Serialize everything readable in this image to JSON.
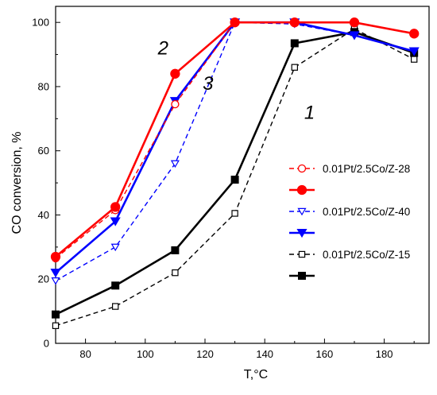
{
  "chart_data": {
    "type": "line",
    "xlabel": "T,°C",
    "ylabel": "CO conversion, %",
    "xlim": [
      70,
      195
    ],
    "ylim": [
      0,
      105
    ],
    "xticks": [
      80,
      100,
      120,
      140,
      160,
      180
    ],
    "yticks": [
      0,
      20,
      40,
      60,
      80,
      100
    ],
    "grid": false,
    "legend_position": "right-middle",
    "annotations": [
      {
        "text": "2",
        "x": 106,
        "y": 90
      },
      {
        "text": "3",
        "x": 121,
        "y": 79
      },
      {
        "text": "1",
        "x": 155,
        "y": 70
      }
    ],
    "series": [
      {
        "name": "0.01Pt/2.5Co/Z-28",
        "color": "#ff0000",
        "dash": "dashed",
        "marker": "circle-open",
        "x": [
          70,
          90,
          110,
          130,
          150,
          170,
          190
        ],
        "y": [
          26.5,
          41.5,
          74.5,
          100,
          100,
          100,
          96.5
        ]
      },
      {
        "name": "",
        "color": "#ff0000",
        "dash": "solid",
        "marker": "circle-filled",
        "x": [
          70,
          90,
          110,
          130,
          150,
          170,
          190
        ],
        "y": [
          27,
          42.5,
          84,
          100,
          100,
          100,
          96.5
        ]
      },
      {
        "name": "0.01Pt/2.5Co/Z-40",
        "color": "#0000ff",
        "dash": "dashed",
        "marker": "triangle-down-open",
        "x": [
          70,
          90,
          110,
          130,
          150,
          170,
          190
        ],
        "y": [
          19.5,
          30,
          56,
          100,
          99.5,
          96,
          91
        ]
      },
      {
        "name": "",
        "color": "#0000ff",
        "dash": "solid",
        "marker": "triangle-down-filled",
        "x": [
          70,
          90,
          110,
          130,
          150,
          170,
          190
        ],
        "y": [
          22,
          38,
          75.5,
          100,
          100,
          96,
          91
        ]
      },
      {
        "name": "0.01Pt/2.5Co/Z-15",
        "color": "#000000",
        "dash": "dashed",
        "marker": "square-open",
        "x": [
          70,
          90,
          110,
          130,
          150,
          170,
          190
        ],
        "y": [
          5.5,
          11.5,
          22,
          40.5,
          86,
          98,
          88.5
        ]
      },
      {
        "name": "",
        "color": "#000000",
        "dash": "solid",
        "marker": "square-filled",
        "x": [
          70,
          90,
          110,
          130,
          150,
          170,
          190
        ],
        "y": [
          9,
          18,
          29,
          51,
          93.5,
          97,
          90.5
        ]
      }
    ]
  }
}
